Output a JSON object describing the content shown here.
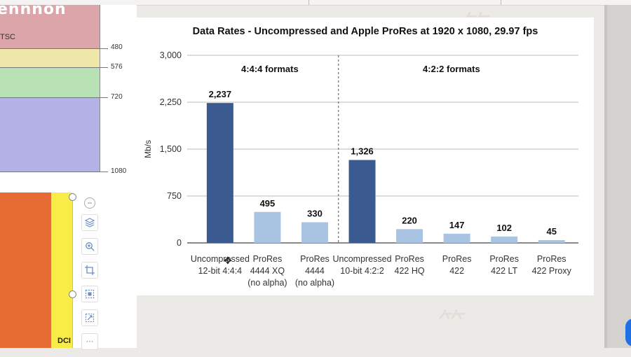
{
  "left_panel": {
    "cut_title": "ennnon",
    "ntsc_label": "TSC",
    "guides": [
      "480",
      "576",
      "720",
      "1080"
    ],
    "dci_label": "DCI"
  },
  "tools": {
    "collapse": "−",
    "icons": [
      "layers-icon",
      "zoom-in-icon",
      "crop-icon",
      "select-area-icon",
      "resize-icon",
      "more-icon"
    ],
    "more_label": "···"
  },
  "colors": {
    "dark_bar": "#3a5a90",
    "light_bar": "#a9c3e3",
    "orange": "#e66c33",
    "yellow": "#f8ec47"
  },
  "chart_data": {
    "type": "bar",
    "title": "Data Rates - Uncompressed and Apple ProRes at 1920 x 1080, 29.97 fps",
    "ylabel": "Mb/s",
    "xlabel": "",
    "ylim": [
      0,
      3000
    ],
    "yticks": [
      "3,000",
      "2,250",
      "1,500",
      "750",
      "0"
    ],
    "ytick_values": [
      3000,
      2250,
      1500,
      750,
      0
    ],
    "grid": true,
    "groups": [
      {
        "label": "4:4:4 formats",
        "start": 0,
        "end": 2
      },
      {
        "label": "4:2:2 formats",
        "start": 3,
        "end": 8
      }
    ],
    "categories": [
      [
        "Uncompressed",
        "12-bit 4:4:4"
      ],
      [
        "ProRes",
        "4444 XQ",
        "(no alpha)"
      ],
      [
        "ProRes",
        "4444",
        "(no alpha)"
      ],
      [
        "Uncompressed",
        "10-bit 4:2:2"
      ],
      [
        "ProRes",
        "422 HQ"
      ],
      [
        "ProRes",
        "422"
      ],
      [
        "ProRes",
        "422 LT"
      ],
      [
        "ProRes",
        "422 Proxy"
      ]
    ],
    "values": [
      2237,
      495,
      330,
      1326,
      220,
      147,
      102,
      45
    ],
    "value_labels": [
      "2,237",
      "495",
      "330",
      "1,326",
      "220",
      "147",
      "102",
      "45"
    ],
    "bar_style": [
      "dark",
      "light",
      "light",
      "dark",
      "light",
      "light",
      "light",
      "light"
    ]
  }
}
